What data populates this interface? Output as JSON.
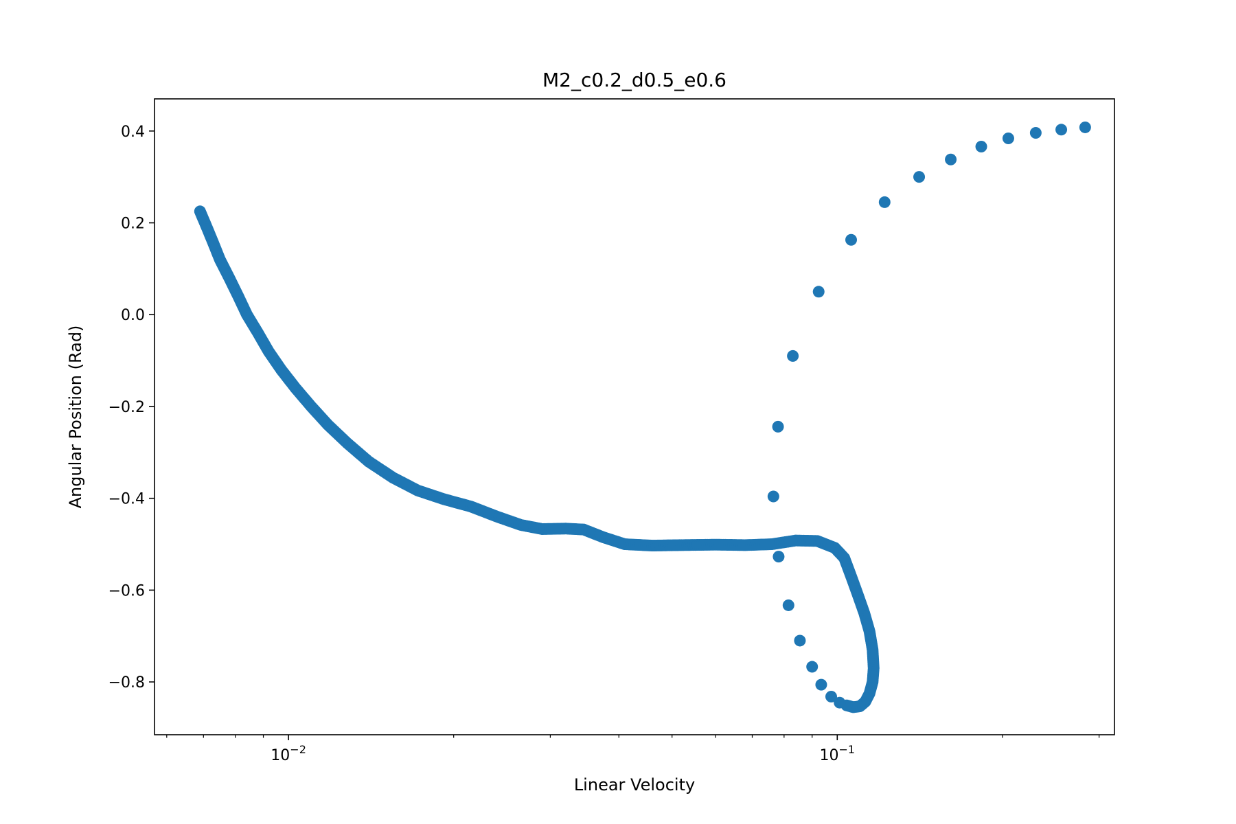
{
  "chart_data": {
    "type": "scatter",
    "title": "M2_c0.2_d0.5_e0.6",
    "xlabel": "Linear Velocity",
    "ylabel": "Angular Position (Rad)",
    "xscale": "log",
    "xlim": [
      0.0057,
      0.32
    ],
    "ylim": [
      -0.915,
      0.47
    ],
    "xticks": [
      {
        "value": 0.01,
        "base": "10",
        "exp": "−2"
      },
      {
        "value": 0.1,
        "base": "10",
        "exp": "−1"
      }
    ],
    "yticks": [
      {
        "value": 0.4,
        "label": "0.4"
      },
      {
        "value": 0.2,
        "label": "0.2"
      },
      {
        "value": 0.0,
        "label": "0.0"
      },
      {
        "value": -0.2,
        "label": "−0.2"
      },
      {
        "value": -0.4,
        "label": "−0.4"
      },
      {
        "value": -0.6,
        "label": "−0.6"
      },
      {
        "value": -0.8,
        "label": "−0.8"
      }
    ],
    "grid": false,
    "color": "#1f77b4",
    "series": [
      {
        "points": [
          [
            0.0069,
            0.225
          ],
          [
            0.0071,
            0.19
          ],
          [
            0.0073,
            0.155
          ],
          [
            0.0075,
            0.12
          ],
          [
            0.0078,
            0.08
          ],
          [
            0.0081,
            0.04
          ],
          [
            0.0084,
            0.0
          ],
          [
            0.0088,
            -0.04
          ],
          [
            0.0092,
            -0.08
          ],
          [
            0.0097,
            -0.12
          ],
          [
            0.0103,
            -0.16
          ],
          [
            0.011,
            -0.2
          ],
          [
            0.0118,
            -0.24
          ],
          [
            0.0128,
            -0.28
          ],
          [
            0.014,
            -0.32
          ],
          [
            0.0155,
            -0.355
          ],
          [
            0.0172,
            -0.383
          ],
          [
            0.0192,
            -0.402
          ],
          [
            0.0215,
            -0.418
          ],
          [
            0.024,
            -0.44
          ],
          [
            0.0265,
            -0.458
          ],
          [
            0.029,
            -0.467
          ],
          [
            0.032,
            -0.466
          ],
          [
            0.0345,
            -0.468
          ],
          [
            0.0375,
            -0.485
          ],
          [
            0.041,
            -0.5
          ],
          [
            0.046,
            -0.503
          ],
          [
            0.052,
            -0.502
          ],
          [
            0.06,
            -0.501
          ],
          [
            0.068,
            -0.502
          ],
          [
            0.076,
            -0.5
          ],
          [
            0.084,
            -0.492
          ],
          [
            0.092,
            -0.493
          ],
          [
            0.099,
            -0.508
          ],
          [
            0.103,
            -0.53
          ],
          [
            0.106,
            -0.57
          ],
          [
            0.109,
            -0.61
          ],
          [
            0.112,
            -0.65
          ],
          [
            0.1145,
            -0.69
          ],
          [
            0.116,
            -0.73
          ],
          [
            0.1165,
            -0.77
          ],
          [
            0.116,
            -0.8
          ],
          [
            0.1145,
            -0.825
          ],
          [
            0.1125,
            -0.843
          ],
          [
            0.11,
            -0.853
          ],
          [
            0.107,
            -0.855
          ],
          [
            0.104,
            -0.851
          ]
        ]
      },
      {
        "points": [
          [
            0.101,
            -0.845
          ],
          [
            0.0975,
            -0.832
          ],
          [
            0.0935,
            -0.806
          ],
          [
            0.09,
            -0.767
          ],
          [
            0.0855,
            -0.71
          ],
          [
            0.0815,
            -0.633
          ],
          [
            0.0782,
            -0.527
          ],
          [
            0.0765,
            -0.396
          ],
          [
            0.078,
            -0.244
          ],
          [
            0.083,
            -0.09
          ],
          [
            0.0925,
            0.05
          ],
          [
            0.106,
            0.163
          ],
          [
            0.122,
            0.245
          ],
          [
            0.141,
            0.3
          ],
          [
            0.161,
            0.338
          ],
          [
            0.183,
            0.366
          ],
          [
            0.205,
            0.384
          ],
          [
            0.23,
            0.396
          ],
          [
            0.256,
            0.403
          ],
          [
            0.283,
            0.408
          ]
        ]
      }
    ]
  }
}
